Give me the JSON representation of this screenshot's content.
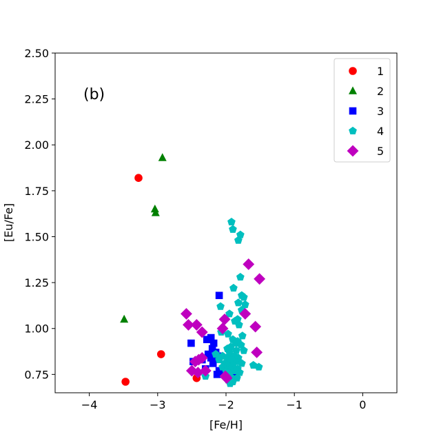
{
  "chart_data": {
    "type": "scatter",
    "annotation": "(b)",
    "xlabel": "[Fe/H]",
    "ylabel": "[Eu/Fe]",
    "xlim": [
      -4.5,
      0.5
    ],
    "ylim": [
      0.65,
      2.5
    ],
    "xticks": [
      -4,
      -3,
      -2,
      -1,
      0
    ],
    "xtick_labels": [
      "−4",
      "−3",
      "−2",
      "−1",
      "0"
    ],
    "yticks": [
      0.75,
      1.0,
      1.25,
      1.5,
      1.75,
      2.0,
      2.25,
      2.5
    ],
    "ytick_labels": [
      "0.75",
      "1.00",
      "1.25",
      "1.50",
      "1.75",
      "2.00",
      "2.25",
      "2.50"
    ],
    "grid": false,
    "legend_position": "top-right",
    "series": [
      {
        "name": "1",
        "marker": "circle",
        "color": "#ff0000",
        "points": [
          [
            -3.28,
            1.82
          ],
          [
            -2.95,
            0.86
          ],
          [
            -3.47,
            0.71
          ],
          [
            -2.43,
            0.73
          ]
        ]
      },
      {
        "name": "2",
        "marker": "triangle",
        "color": "#008000",
        "points": [
          [
            -2.93,
            1.93
          ],
          [
            -3.04,
            1.65
          ],
          [
            -3.03,
            1.63
          ],
          [
            -3.49,
            1.05
          ]
        ]
      },
      {
        "name": "3",
        "marker": "square",
        "color": "#0000ff",
        "points": [
          [
            -2.1,
            1.18
          ],
          [
            -2.51,
            0.92
          ],
          [
            -2.28,
            0.94
          ],
          [
            -2.22,
            0.95
          ],
          [
            -2.18,
            0.92
          ],
          [
            -2.2,
            0.89
          ],
          [
            -2.15,
            0.87
          ],
          [
            -2.26,
            0.86
          ],
          [
            -2.22,
            0.84
          ],
          [
            -2.12,
            0.85
          ],
          [
            -2.35,
            0.83
          ],
          [
            -2.48,
            0.82
          ],
          [
            -2.19,
            0.81
          ],
          [
            -2.3,
            0.78
          ],
          [
            -2.1,
            0.77
          ],
          [
            -2.05,
            0.76
          ],
          [
            -2.13,
            0.75
          ],
          [
            -1.89,
            0.74
          ],
          [
            -1.91,
            0.72
          ],
          [
            -1.95,
            0.84
          ],
          [
            -2.02,
            0.8
          ]
        ]
      },
      {
        "name": "4",
        "marker": "pentagon",
        "color": "#00bfbf",
        "points": [
          [
            -1.92,
            1.58
          ],
          [
            -1.9,
            1.54
          ],
          [
            -1.79,
            1.51
          ],
          [
            -1.82,
            1.48
          ],
          [
            -1.79,
            1.28
          ],
          [
            -1.89,
            1.22
          ],
          [
            -1.77,
            1.18
          ],
          [
            -1.74,
            1.17
          ],
          [
            -1.82,
            1.14
          ],
          [
            -1.72,
            1.13
          ],
          [
            -2.08,
            1.12
          ],
          [
            -1.77,
            1.1
          ],
          [
            -1.95,
            1.08
          ],
          [
            -1.83,
            1.05
          ],
          [
            -1.87,
            1.04
          ],
          [
            -1.81,
            1.02
          ],
          [
            -2.07,
            0.98
          ],
          [
            -1.97,
            0.97
          ],
          [
            -1.76,
            0.96
          ],
          [
            -1.9,
            0.94
          ],
          [
            -1.83,
            0.93
          ],
          [
            -1.86,
            0.92
          ],
          [
            -1.78,
            0.91
          ],
          [
            -1.93,
            0.9
          ],
          [
            -1.98,
            0.89
          ],
          [
            -1.85,
            0.88
          ],
          [
            -1.74,
            0.88
          ],
          [
            -1.95,
            0.87
          ],
          [
            -2.15,
            0.86
          ],
          [
            -2.05,
            0.85
          ],
          [
            -1.88,
            0.85
          ],
          [
            -1.98,
            0.84
          ],
          [
            -1.82,
            0.84
          ],
          [
            -2.1,
            0.83
          ],
          [
            -1.93,
            0.83
          ],
          [
            -1.85,
            0.82
          ],
          [
            -2.02,
            0.81
          ],
          [
            -1.77,
            0.81
          ],
          [
            -1.97,
            0.8
          ],
          [
            -1.9,
            0.8
          ],
          [
            -1.6,
            0.8
          ],
          [
            -1.52,
            0.79
          ],
          [
            -2.05,
            0.79
          ],
          [
            -1.83,
            0.78
          ],
          [
            -1.93,
            0.78
          ],
          [
            -2.0,
            0.77
          ],
          [
            -1.87,
            0.77
          ],
          [
            -1.95,
            0.76
          ],
          [
            -1.8,
            0.76
          ],
          [
            -2.3,
            0.74
          ],
          [
            -1.99,
            0.74
          ],
          [
            -1.91,
            0.73
          ],
          [
            -1.84,
            0.73
          ],
          [
            -1.97,
            0.72
          ],
          [
            -1.9,
            0.71
          ],
          [
            -1.94,
            0.7
          ]
        ]
      },
      {
        "name": "5",
        "marker": "diamond",
        "color": "#bf00bf",
        "points": [
          [
            -1.67,
            1.35
          ],
          [
            -1.51,
            1.27
          ],
          [
            -2.58,
            1.08
          ],
          [
            -2.43,
            1.02
          ],
          [
            -2.35,
            0.98
          ],
          [
            -2.02,
            1.05
          ],
          [
            -2.05,
            1.0
          ],
          [
            -1.72,
            1.08
          ],
          [
            -1.57,
            1.01
          ],
          [
            -2.55,
            1.02
          ],
          [
            -1.55,
            0.87
          ],
          [
            -2.4,
            0.83
          ],
          [
            -2.35,
            0.84
          ],
          [
            -2.45,
            0.82
          ],
          [
            -2.5,
            0.77
          ],
          [
            -2.3,
            0.77
          ],
          [
            -2.41,
            0.76
          ],
          [
            -2.01,
            0.74
          ],
          [
            -1.99,
            0.73
          ]
        ]
      }
    ]
  }
}
